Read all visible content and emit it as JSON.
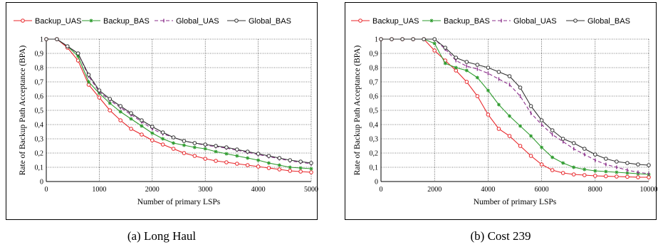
{
  "chart_data": [
    {
      "type": "line",
      "caption": "(a)  Long Haul",
      "xlabel": "Number of primary LSPs",
      "ylabel": "Rate of Backup Path Acceptance (BPA)",
      "xlim": [
        0,
        5000
      ],
      "ylim": [
        0,
        1
      ],
      "xticks": [
        "0",
        "1000",
        "2000",
        "3000",
        "4000",
        "5000"
      ],
      "yticks": [
        "0",
        "0,1",
        "0,2",
        "0,3",
        "0,4",
        "0,5",
        "0,6",
        "0,7",
        "0,8",
        "0,9",
        "1"
      ],
      "grid": true,
      "legend_position": "top",
      "series": [
        {
          "name": "Backup_UAS",
          "color": "#e8262a",
          "marker": "open-circle",
          "dash": "",
          "x": [
            0,
            200,
            400,
            600,
            800,
            1000,
            1200,
            1400,
            1600,
            1800,
            2000,
            2200,
            2400,
            2600,
            2800,
            3000,
            3200,
            3400,
            3600,
            3800,
            4000,
            4200,
            4400,
            4600,
            4800,
            5000
          ],
          "y": [
            1,
            1,
            0.94,
            0.85,
            0.68,
            0.59,
            0.5,
            0.43,
            0.37,
            0.33,
            0.29,
            0.26,
            0.23,
            0.2,
            0.18,
            0.16,
            0.145,
            0.135,
            0.125,
            0.115,
            0.105,
            0.095,
            0.085,
            0.075,
            0.07,
            0.065
          ]
        },
        {
          "name": "Backup_BAS",
          "color": "#2e9b2e",
          "marker": "star",
          "dash": "",
          "x": [
            0,
            200,
            400,
            600,
            800,
            1000,
            1200,
            1400,
            1600,
            1800,
            2000,
            2200,
            2400,
            2600,
            2800,
            3000,
            3200,
            3400,
            3600,
            3800,
            4000,
            4200,
            4400,
            4600,
            4800,
            5000
          ],
          "y": [
            1,
            1,
            0.95,
            0.88,
            0.7,
            0.62,
            0.55,
            0.49,
            0.44,
            0.39,
            0.34,
            0.3,
            0.27,
            0.255,
            0.24,
            0.23,
            0.21,
            0.195,
            0.18,
            0.165,
            0.15,
            0.13,
            0.115,
            0.1,
            0.095,
            0.09
          ]
        },
        {
          "name": "Global_UAS",
          "color": "#8b2f8b",
          "marker": "bar",
          "dash": "5,3",
          "x": [
            0,
            200,
            400,
            600,
            800,
            1000,
            1200,
            1400,
            1600,
            1800,
            2000,
            2200,
            2400,
            2600,
            2800,
            3000,
            3200,
            3400,
            3600,
            3800,
            4000,
            4200,
            4400,
            4600,
            4800,
            5000
          ],
          "y": [
            1,
            1,
            0.95,
            0.9,
            0.74,
            0.63,
            0.57,
            0.52,
            0.47,
            0.42,
            0.37,
            0.335,
            0.31,
            0.285,
            0.27,
            0.255,
            0.245,
            0.235,
            0.22,
            0.205,
            0.19,
            0.175,
            0.16,
            0.145,
            0.135,
            0.125
          ]
        },
        {
          "name": "Global_BAS",
          "color": "#333333",
          "marker": "open-circle",
          "dash": "",
          "x": [
            0,
            200,
            400,
            600,
            800,
            1000,
            1200,
            1400,
            1600,
            1800,
            2000,
            2200,
            2400,
            2600,
            2800,
            3000,
            3200,
            3400,
            3600,
            3800,
            4000,
            4200,
            4400,
            4600,
            4800,
            5000
          ],
          "y": [
            1,
            1,
            0.95,
            0.9,
            0.75,
            0.64,
            0.58,
            0.53,
            0.48,
            0.43,
            0.385,
            0.345,
            0.31,
            0.285,
            0.27,
            0.26,
            0.25,
            0.24,
            0.225,
            0.21,
            0.195,
            0.18,
            0.165,
            0.15,
            0.14,
            0.13
          ]
        }
      ]
    },
    {
      "type": "line",
      "caption": "(b)  Cost 239",
      "xlabel": "Number of primary LSPs",
      "ylabel": "Rate of Backup Path Acceptance (BPA)",
      "xlim": [
        0,
        10000
      ],
      "ylim": [
        0,
        1
      ],
      "xticks": [
        "0",
        "2000",
        "4000",
        "6000",
        "8000",
        "10000"
      ],
      "yticks": [
        "0",
        "0,1",
        "0,2",
        "0,3",
        "0,4",
        "0,5",
        "0,6",
        "0,7",
        "0,8",
        "0,9",
        "1"
      ],
      "grid": true,
      "legend_position": "top",
      "series": [
        {
          "name": "Backup_UAS",
          "color": "#e8262a",
          "marker": "open-circle",
          "dash": "",
          "x": [
            0,
            400,
            800,
            1200,
            1600,
            2000,
            2400,
            2800,
            3200,
            3600,
            4000,
            4400,
            4800,
            5200,
            5600,
            6000,
            6400,
            6800,
            7200,
            7600,
            8000,
            8400,
            8800,
            9200,
            9600,
            10000
          ],
          "y": [
            1,
            1,
            1,
            1,
            1,
            0.92,
            0.85,
            0.78,
            0.7,
            0.6,
            0.47,
            0.37,
            0.32,
            0.25,
            0.18,
            0.12,
            0.08,
            0.06,
            0.05,
            0.045,
            0.04,
            0.037,
            0.035,
            0.033,
            0.03,
            0.03
          ]
        },
        {
          "name": "Backup_BAS",
          "color": "#2e9b2e",
          "marker": "star",
          "dash": "",
          "x": [
            0,
            400,
            800,
            1200,
            1600,
            2000,
            2400,
            2800,
            3200,
            3600,
            4000,
            4400,
            4800,
            5200,
            5600,
            6000,
            6400,
            6800,
            7200,
            7600,
            8000,
            8400,
            8800,
            9200,
            9600,
            10000
          ],
          "y": [
            1,
            1,
            1,
            1,
            1,
            0.97,
            0.83,
            0.8,
            0.78,
            0.73,
            0.64,
            0.54,
            0.46,
            0.39,
            0.32,
            0.24,
            0.17,
            0.13,
            0.1,
            0.085,
            0.075,
            0.07,
            0.065,
            0.06,
            0.055,
            0.05
          ]
        },
        {
          "name": "Global_UAS",
          "color": "#8b2f8b",
          "marker": "bar",
          "dash": "5,3",
          "x": [
            0,
            400,
            800,
            1200,
            1600,
            2000,
            2400,
            2800,
            3200,
            3600,
            4000,
            4400,
            4800,
            5200,
            5600,
            6000,
            6400,
            6800,
            7200,
            7600,
            8000,
            8400,
            8800,
            9200,
            9600,
            10000
          ],
          "y": [
            1,
            1,
            1,
            1,
            1,
            1,
            0.93,
            0.85,
            0.81,
            0.79,
            0.76,
            0.72,
            0.68,
            0.6,
            0.48,
            0.4,
            0.33,
            0.28,
            0.23,
            0.19,
            0.15,
            0.12,
            0.1,
            0.08,
            0.065,
            0.055
          ]
        },
        {
          "name": "Global_BAS",
          "color": "#333333",
          "marker": "open-circle",
          "dash": "",
          "x": [
            0,
            400,
            800,
            1200,
            1600,
            2000,
            2400,
            2800,
            3200,
            3600,
            4000,
            4400,
            4800,
            5200,
            5600,
            6000,
            6400,
            6800,
            7200,
            7600,
            8000,
            8400,
            8800,
            9200,
            9600,
            10000
          ],
          "y": [
            1,
            1,
            1,
            1,
            1,
            1,
            0.94,
            0.87,
            0.84,
            0.82,
            0.8,
            0.77,
            0.74,
            0.66,
            0.53,
            0.43,
            0.36,
            0.3,
            0.27,
            0.23,
            0.19,
            0.16,
            0.14,
            0.13,
            0.12,
            0.115
          ]
        }
      ]
    }
  ]
}
